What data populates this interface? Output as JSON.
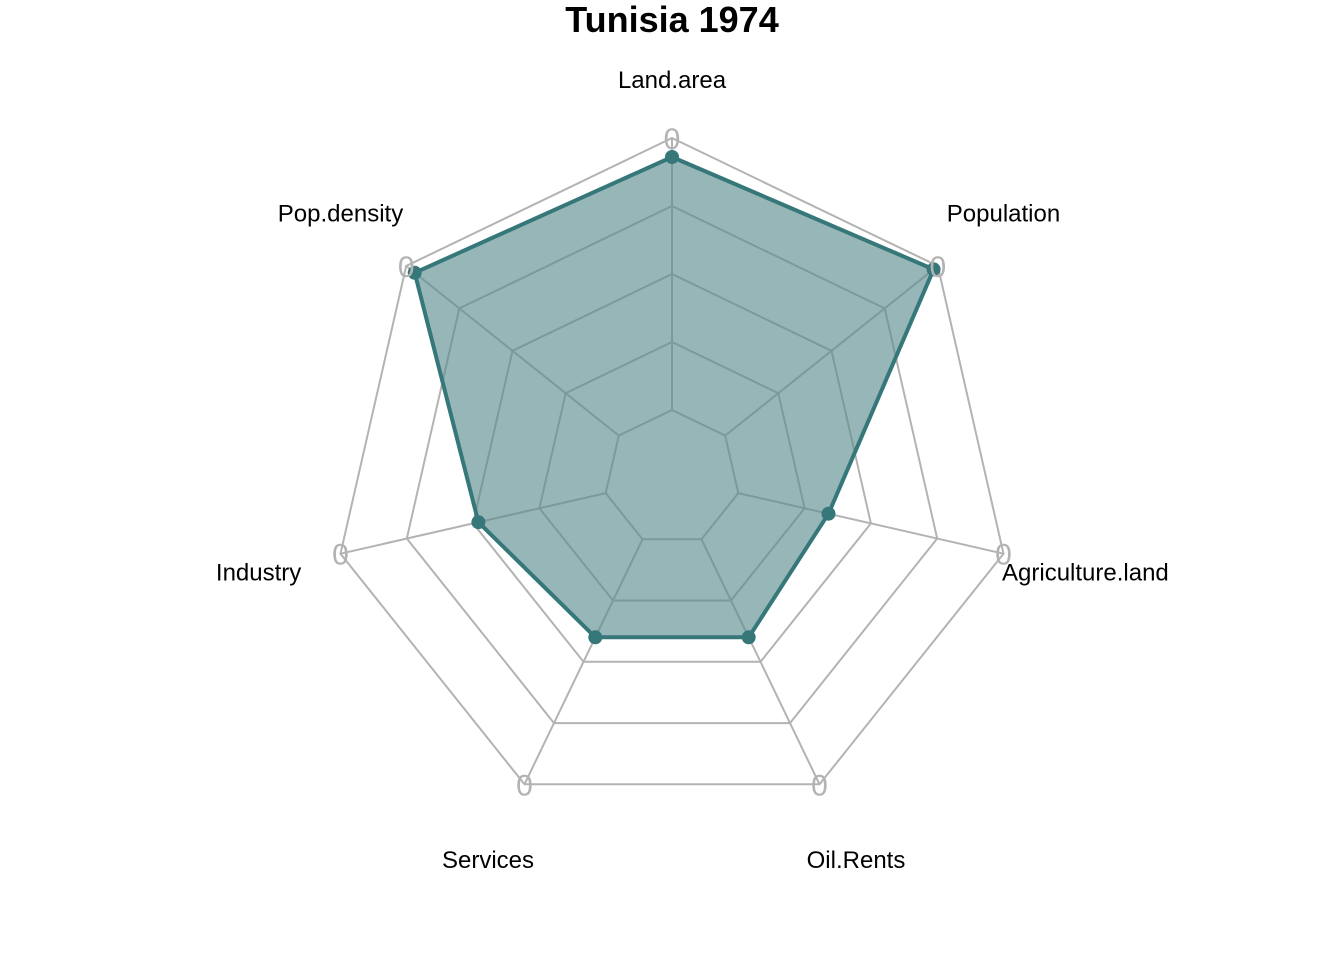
{
  "chart_data": {
    "type": "radar",
    "title": "Tunisia 1974",
    "axes": [
      "Land.area",
      "Population",
      "Agriculture.land",
      "Oil.Rents",
      "Services",
      "Industry",
      "Pop.density"
    ],
    "series": [
      {
        "values": [
          0.93,
          0.98,
          0.34,
          0.4,
          0.4,
          0.48,
          0.96
        ]
      }
    ],
    "range": [
      0,
      1
    ],
    "grid_levels": 5,
    "grid_tick_label": "0",
    "colors": {
      "series_line": "#36777a",
      "series_fill": "#96b6b8",
      "grid_outer": "#b3b3b3",
      "grid_inner": "#7d9a9b"
    },
    "legend": "none"
  }
}
